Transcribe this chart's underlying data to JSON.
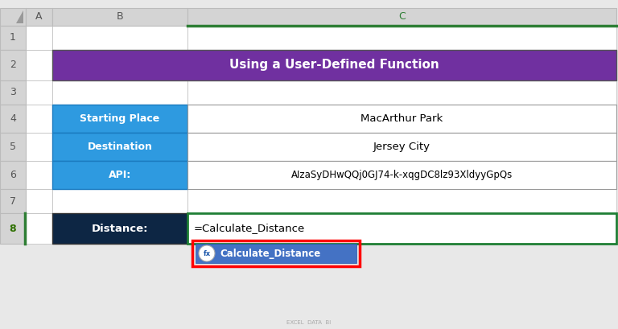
{
  "title": "Using a User-Defined Function",
  "title_bg": "#7030A0",
  "title_text_color": "#FFFFFF",
  "rows": [
    {
      "label": "Starting Place",
      "value": "MacArthur Park"
    },
    {
      "label": "Destination",
      "value": "Jersey City"
    },
    {
      "label": "API:",
      "value": "AIzaSyDHwQQj0GJ74-k-xqgDC8lz93XldyyGpQs"
    }
  ],
  "label_bg": "#2E9AE0",
  "label_text_color": "#FFFFFF",
  "value_bg": "#FFFFFF",
  "value_text_color": "#000000",
  "distance_label": "Distance:",
  "distance_label_bg": "#0D2644",
  "distance_label_text": "#FFFFFF",
  "distance_value": "=Calculate_Distance",
  "distance_value_bg": "#FFFFFF",
  "distance_border_color": "#1E7E34",
  "autocomplete_text": "Calculate_Distance",
  "autocomplete_bg": "#4472C4",
  "autocomplete_border": "#FF0000",
  "bg_color": "#E8E8E8",
  "header_bg": "#D4D4D4",
  "header_text": "#555555",
  "grid_color": "#BBBBBB",
  "row8_header_bg": "#D4D4D4",
  "row8_header_text": "#2E7000",
  "col_header_C_border": "#2E7E34"
}
